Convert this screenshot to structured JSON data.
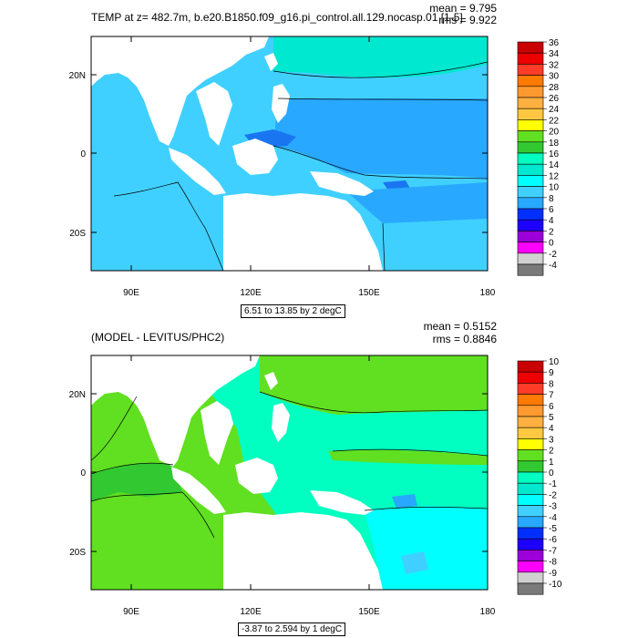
{
  "panel1": {
    "title": "TEMP at z= 482.7m, b.e20.B1850.f09_g16.pi_control.all.129.nocasp.01 [1-5]",
    "mean_label": "mean = 9.795",
    "rms_label": "rms = 9.922",
    "contour_info": "6.51 to 13.85 by 2 degC",
    "x_ticks": [
      "90E",
      "120E",
      "150E",
      "180"
    ],
    "y_ticks": [
      "20N",
      "0",
      "20S"
    ],
    "colorbar": {
      "labels": [
        "36",
        "34",
        "32",
        "30",
        "28",
        "26",
        "24",
        "22",
        "20",
        "18",
        "16",
        "14",
        "12",
        "10",
        "8",
        "6",
        "4",
        "2",
        "0",
        "-2",
        "-4"
      ],
      "colors": [
        "#c80000",
        "#ee0000",
        "#ff3c28",
        "#ff7a00",
        "#ff9a30",
        "#ffb040",
        "#ffc840",
        "#ffff00",
        "#60e020",
        "#32c832",
        "#00ffc0",
        "#00e8d0",
        "#00ffff",
        "#40d0ff",
        "#28a8ff",
        "#0030ff",
        "#1e00ff",
        "#9c00d8",
        "#ff00ff",
        "#d0d0d0",
        "#7a7a7a"
      ]
    }
  },
  "panel2": {
    "title": "(MODEL - LEVITUS/PHC2)",
    "mean_label": "mean = 0.5152",
    "rms_label": "rms = 0.8846",
    "contour_info": "-3.87 to 2.594 by 1 degC",
    "x_ticks": [
      "90E",
      "120E",
      "150E",
      "180"
    ],
    "y_ticks": [
      "20N",
      "0",
      "20S"
    ],
    "colorbar": {
      "labels": [
        "10",
        "9",
        "8",
        "7",
        "6",
        "5",
        "4",
        "3",
        "2",
        "1",
        "0",
        "-1",
        "-2",
        "-3",
        "-4",
        "-5",
        "-6",
        "-7",
        "-8",
        "-9",
        "-10"
      ],
      "colors": [
        "#c80000",
        "#ee0000",
        "#ff3c28",
        "#ff7a00",
        "#ff9a30",
        "#ffb040",
        "#ffc840",
        "#ffff00",
        "#60e020",
        "#32c832",
        "#00ffc0",
        "#00e8d0",
        "#00ffff",
        "#40d0ff",
        "#28a8ff",
        "#0030ff",
        "#1e00ff",
        "#9c00d8",
        "#ff00ff",
        "#d0d0d0",
        "#7a7a7a"
      ]
    }
  },
  "map_colors": {
    "land": "#ffffff",
    "p1_base": "#40d0ff",
    "p1_light": "#00e8d0",
    "p1_mid": "#28a8ff",
    "p1_dark": "#1a76f0",
    "p2_base": "#60e020",
    "p2_ocean": "#00ffc0",
    "p2_dark": "#32c832",
    "p2_cyan": "#00ffff",
    "p2_cold": "#28a8ff"
  }
}
